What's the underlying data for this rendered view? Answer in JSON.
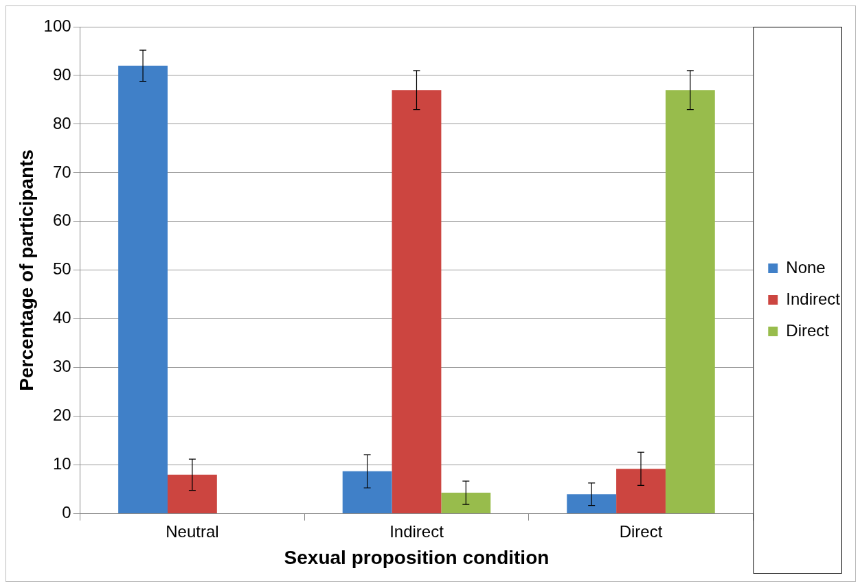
{
  "chart_data": {
    "type": "bar",
    "xlabel": "Sexual proposition condition",
    "ylabel": "Percentage of participants",
    "categories": [
      "Neutral",
      "Indirect",
      "Direct"
    ],
    "series": [
      {
        "name": "None",
        "color": "#4080c8",
        "values": [
          92,
          8.7,
          4
        ],
        "errors": [
          3.2,
          3.4,
          2.3
        ]
      },
      {
        "name": "Indirect",
        "color": "#cc4540",
        "values": [
          8,
          87,
          9.2
        ],
        "errors": [
          3.2,
          4,
          3.4
        ]
      },
      {
        "name": "Direct",
        "color": "#98bc4c",
        "values": [
          0,
          4.3,
          87
        ],
        "errors": [
          null,
          2.4,
          4
        ]
      }
    ],
    "ylim": [
      0,
      100
    ],
    "yticks": [
      0,
      10,
      20,
      30,
      40,
      50,
      60,
      70,
      80,
      90,
      100
    ],
    "grid": "y",
    "legend": "right"
  }
}
